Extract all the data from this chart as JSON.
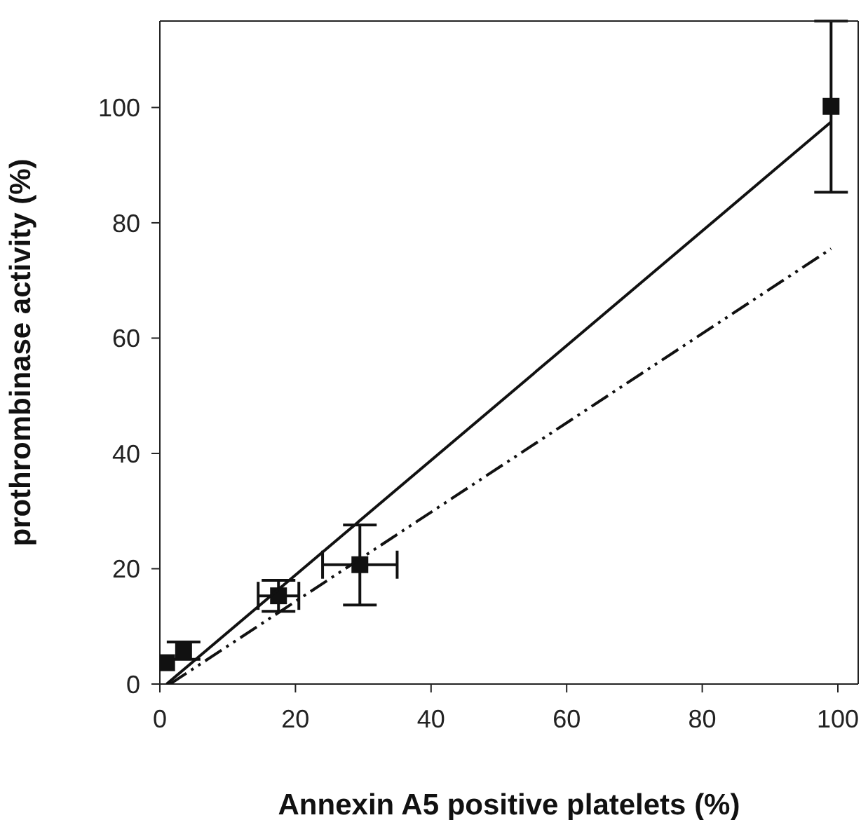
{
  "chart_data": {
    "type": "scatter",
    "xlabel": "Annexin A5 positive platelets (%)",
    "ylabel": "prothrombinase activity (%)",
    "xlim": [
      0,
      103
    ],
    "ylim": [
      0,
      115
    ],
    "xticks": [
      0,
      20,
      40,
      60,
      80,
      100
    ],
    "yticks": [
      0,
      20,
      40,
      60,
      80,
      100
    ],
    "marker": "square",
    "series": [
      {
        "color": "#111111",
        "x": [
          1,
          3.5,
          17.5,
          29.5,
          99
        ],
        "values": [
          3.7,
          5.8,
          15.3,
          20.7,
          100.2
        ],
        "errors": [
          null,
          1.5,
          2.7,
          [
            13.7,
            27.6
          ],
          [
            85.3,
            115
          ]
        ],
        "xerrors": [
          null,
          null,
          3,
          5.5,
          null
        ]
      },
      {
        "type": "line",
        "color": "#111111",
        "marker": "none",
        "line_style": "solid",
        "x": [
          1,
          99
        ],
        "values": [
          0,
          97.5
        ]
      },
      {
        "type": "line",
        "color": "#111111",
        "marker": "none",
        "line_style": "dashdotdot",
        "x": [
          1.5,
          99
        ],
        "values": [
          0,
          75.5
        ]
      }
    ]
  }
}
